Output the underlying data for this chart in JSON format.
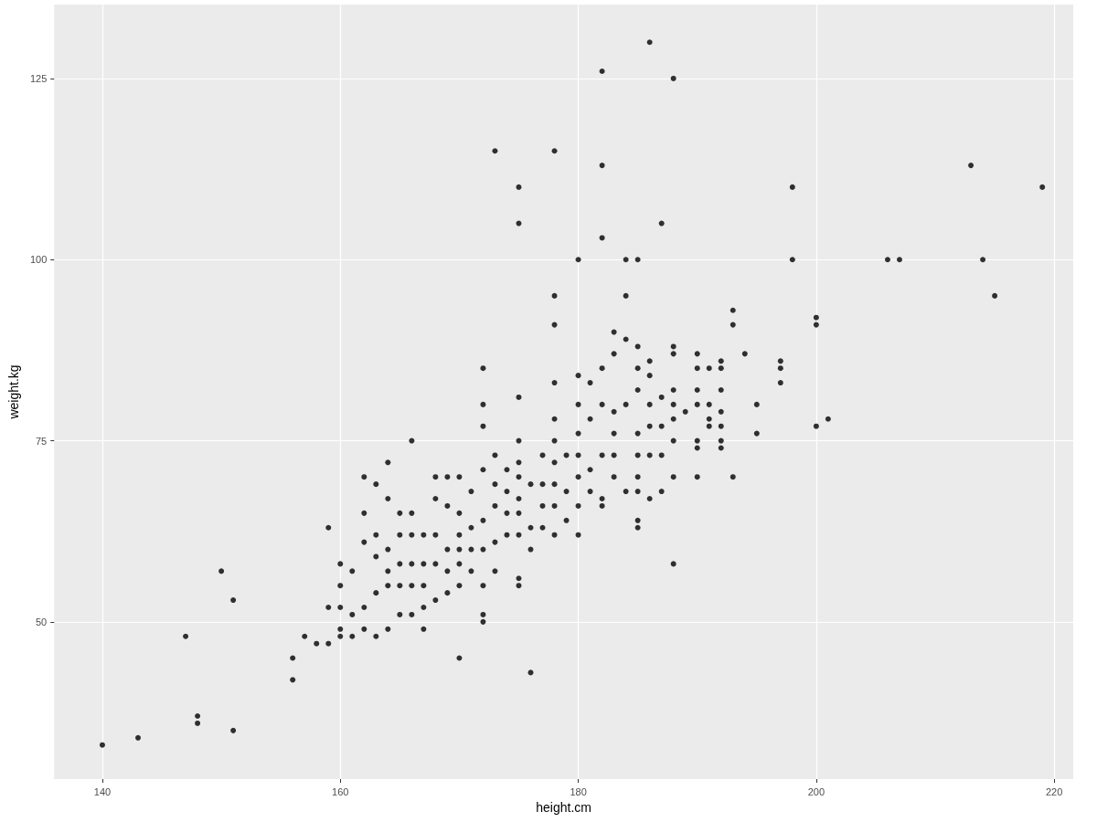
{
  "chart_data": {
    "type": "scatter",
    "xlabel": "height.cm",
    "ylabel": "weight.kg",
    "xlim": [
      135.95,
      221.6
    ],
    "ylim": [
      28.3,
      135.2
    ],
    "xticks": [
      140,
      160,
      180,
      200,
      220
    ],
    "yticks": [
      50,
      75,
      100,
      125
    ],
    "grid": true,
    "marker": "circle",
    "series": [
      {
        "color": "#000000",
        "x": [
          140,
          143,
          147,
          148,
          148,
          150,
          151,
          151,
          156,
          156,
          157,
          158,
          159,
          159,
          159,
          160,
          160,
          160,
          160,
          160,
          161,
          161,
          161,
          162,
          162,
          162,
          162,
          162,
          163,
          163,
          163,
          163,
          163,
          164,
          164,
          164,
          164,
          164,
          164,
          165,
          165,
          165,
          165,
          165,
          166,
          166,
          166,
          166,
          166,
          166,
          167,
          167,
          167,
          167,
          167,
          168,
          168,
          168,
          168,
          168,
          169,
          169,
          169,
          169,
          169,
          170,
          170,
          170,
          170,
          170,
          170,
          170,
          171,
          171,
          171,
          171,
          172,
          172,
          172,
          172,
          172,
          172,
          172,
          172,
          172,
          173,
          173,
          173,
          173,
          173,
          173,
          174,
          174,
          174,
          174,
          175,
          175,
          175,
          175,
          175,
          175,
          175,
          175,
          175,
          175,
          175,
          176,
          176,
          176,
          176,
          177,
          177,
          177,
          177,
          178,
          178,
          178,
          178,
          178,
          178,
          178,
          178,
          178,
          178,
          179,
          179,
          179,
          180,
          180,
          180,
          180,
          180,
          180,
          180,
          180,
          181,
          181,
          181,
          181,
          182,
          182,
          182,
          182,
          182,
          182,
          182,
          182,
          183,
          183,
          183,
          183,
          183,
          183,
          184,
          184,
          184,
          184,
          184,
          185,
          185,
          185,
          185,
          185,
          185,
          185,
          185,
          185,
          185,
          186,
          186,
          186,
          186,
          186,
          186,
          186,
          187,
          187,
          187,
          187,
          187,
          188,
          188,
          188,
          188,
          188,
          188,
          188,
          188,
          188,
          189,
          190,
          190,
          190,
          190,
          190,
          190,
          190,
          191,
          191,
          191,
          191,
          192,
          192,
          192,
          192,
          192,
          192,
          192,
          193,
          193,
          193,
          194,
          195,
          195,
          197,
          197,
          197,
          198,
          198,
          200,
          200,
          200,
          201,
          206,
          207,
          213,
          214,
          215,
          219
        ],
        "values": [
          33,
          34,
          48,
          37,
          36,
          57,
          53,
          35,
          45,
          42,
          48,
          47,
          63,
          52,
          47,
          58,
          55,
          52,
          49,
          48,
          57,
          51,
          48,
          70,
          65,
          61,
          52,
          49,
          69,
          62,
          59,
          54,
          48,
          72,
          67,
          60,
          57,
          55,
          49,
          65,
          62,
          58,
          55,
          51,
          75,
          65,
          62,
          58,
          55,
          51,
          62,
          58,
          55,
          52,
          49,
          70,
          67,
          62,
          58,
          53,
          70,
          66,
          60,
          57,
          54,
          70,
          65,
          62,
          60,
          58,
          55,
          45,
          68,
          63,
          60,
          57,
          85,
          80,
          77,
          71,
          64,
          60,
          55,
          51,
          50,
          115,
          73,
          69,
          66,
          61,
          57,
          71,
          68,
          65,
          62,
          110,
          105,
          81,
          75,
          72,
          70,
          67,
          65,
          62,
          56,
          55,
          69,
          63,
          60,
          43,
          73,
          69,
          66,
          63,
          115,
          95,
          91,
          83,
          78,
          75,
          72,
          69,
          66,
          62,
          73,
          68,
          64,
          100,
          84,
          80,
          76,
          73,
          70,
          66,
          62,
          83,
          78,
          71,
          68,
          126,
          113,
          103,
          85,
          80,
          73,
          67,
          66,
          90,
          87,
          79,
          76,
          73,
          70,
          100,
          95,
          89,
          80,
          68,
          100,
          88,
          85,
          82,
          76,
          73,
          70,
          68,
          64,
          63,
          130,
          86,
          84,
          80,
          77,
          73,
          67,
          105,
          81,
          77,
          73,
          68,
          125,
          88,
          87,
          82,
          80,
          78,
          75,
          70,
          58,
          79,
          87,
          85,
          82,
          80,
          75,
          74,
          70,
          85,
          80,
          78,
          77,
          86,
          85,
          82,
          79,
          77,
          75,
          74,
          93,
          91,
          70,
          87,
          80,
          76,
          86,
          85,
          83,
          110,
          100,
          92,
          91,
          77,
          78,
          100,
          100,
          113,
          100,
          95,
          110
        ]
      }
    ]
  }
}
